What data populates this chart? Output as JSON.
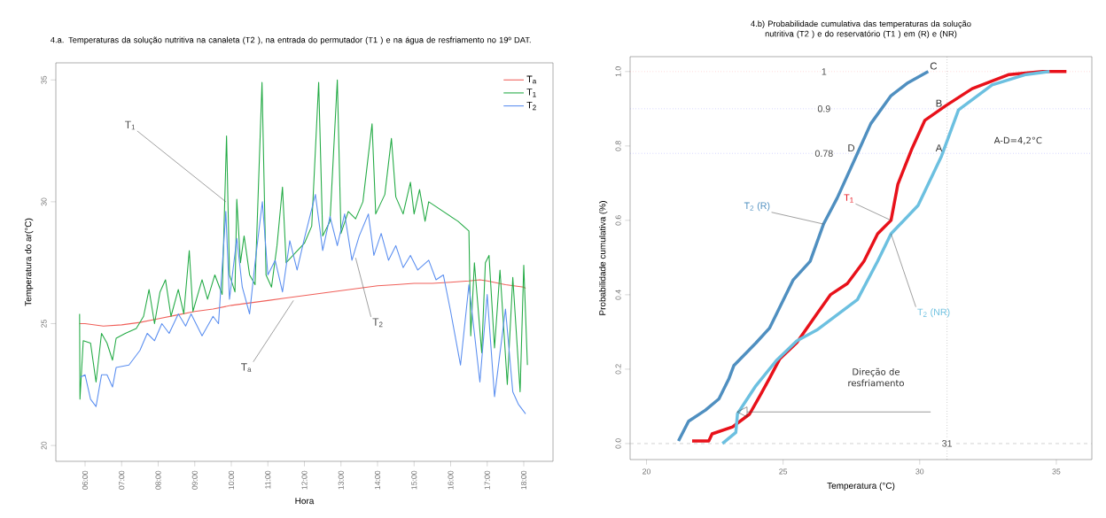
{
  "chart_data": [
    {
      "type": "line",
      "title": "4.a. Temperaturas da solução nutritiva na canaleta (T2 ), na entrada do permutador (T1 ) e na água de resfriamento no 19º DAT.",
      "xlabel": "Hora",
      "ylabel": "Temperatura do ar(°C)",
      "xlim": [
        5.2,
        18.8
      ],
      "ylim": [
        19.35,
        35.7
      ],
      "xticks": [
        {
          "value": 6,
          "label": "06:00"
        },
        {
          "value": 7,
          "label": "07:00"
        },
        {
          "value": 8,
          "label": "08:00"
        },
        {
          "value": 9,
          "label": "09:00"
        },
        {
          "value": 10,
          "label": "10:00"
        },
        {
          "value": 11,
          "label": "11:00"
        },
        {
          "value": 12,
          "label": "12:00"
        },
        {
          "value": 13,
          "label": "13:00"
        },
        {
          "value": 14,
          "label": "14:00"
        },
        {
          "value": 15,
          "label": "15:00"
        },
        {
          "value": 16,
          "label": "16:00"
        },
        {
          "value": 17,
          "label": "17:00"
        },
        {
          "value": 18,
          "label": "18:00"
        }
      ],
      "yticks": [
        20,
        25,
        30,
        35
      ],
      "legend": "top right",
      "annotations": [
        {
          "text": "T$_{1}$",
          "x": 9.85,
          "y": 30.0
        },
        {
          "text": "T$_{2}$",
          "x": 13.4,
          "y": 27.7
        },
        {
          "text": "T$_{a}$",
          "x": 11.7,
          "y": 25.95
        }
      ],
      "series": [
        {
          "name": "T$_{a}$",
          "color": "#f0605a",
          "x": [
            5.85,
            6.0,
            6.5,
            7.0,
            7.5,
            8.0,
            8.5,
            9.0,
            9.5,
            10.0,
            10.5,
            11.0,
            11.5,
            12.0,
            12.5,
            13.0,
            13.5,
            14.0,
            14.5,
            15.0,
            15.5,
            16.0,
            16.5,
            16.8,
            17.0,
            17.5,
            18.0,
            18.05
          ],
          "values": [
            25.0,
            25.0,
            24.9,
            24.95,
            25.05,
            25.2,
            25.35,
            25.5,
            25.6,
            25.75,
            25.85,
            25.95,
            26.05,
            26.15,
            26.25,
            26.35,
            26.45,
            26.55,
            26.6,
            26.65,
            26.65,
            26.7,
            26.75,
            26.8,
            26.75,
            26.6,
            26.5,
            26.45
          ]
        },
        {
          "name": "T$_{1}$",
          "color": "#22aa44",
          "x": [
            5.85,
            5.86,
            5.95,
            6.15,
            6.3,
            6.45,
            6.6,
            6.75,
            6.85,
            7.1,
            7.4,
            7.6,
            7.75,
            7.9,
            8.05,
            8.2,
            8.35,
            8.55,
            8.7,
            8.85,
            8.95,
            9.2,
            9.35,
            9.55,
            9.75,
            9.87,
            9.95,
            10.1,
            10.15,
            10.25,
            10.35,
            10.5,
            10.65,
            10.84,
            10.95,
            11.1,
            11.25,
            11.4,
            11.5,
            11.75,
            12.0,
            12.2,
            12.39,
            12.5,
            12.7,
            12.9,
            13.0,
            13.2,
            13.4,
            13.6,
            13.85,
            13.95,
            14.2,
            14.38,
            14.5,
            14.7,
            14.9,
            15.0,
            15.15,
            15.3,
            15.4,
            15.8,
            16.2,
            16.5,
            16.55,
            16.65,
            16.85,
            16.95,
            17.05,
            17.2,
            17.35,
            17.55,
            17.7,
            17.9,
            18.0,
            18.1
          ],
          "values": [
            25.4,
            21.9,
            24.3,
            24.2,
            22.6,
            24.6,
            24.2,
            23.5,
            24.4,
            24.6,
            24.8,
            25.3,
            26.4,
            25.0,
            26.3,
            26.8,
            25.3,
            26.4,
            25.4,
            28.0,
            25.5,
            26.8,
            26.0,
            27.0,
            26.2,
            32.7,
            27.0,
            26.3,
            30.1,
            27.5,
            28.6,
            27.0,
            26.6,
            34.9,
            27.0,
            26.5,
            28.2,
            30.6,
            27.5,
            27.9,
            28.3,
            29.0,
            34.9,
            28.6,
            29.2,
            35.0,
            28.7,
            29.6,
            29.3,
            30.0,
            33.2,
            29.5,
            30.3,
            32.6,
            30.2,
            29.5,
            30.8,
            29.5,
            30.5,
            29.2,
            30.0,
            29.6,
            29.2,
            28.8,
            24.5,
            27.5,
            23.8,
            27.5,
            27.8,
            24.0,
            27.2,
            22.5,
            26.9,
            22.2,
            27.4,
            23.3
          ]
        },
        {
          "name": "T$_{2}$",
          "color": "#5a8ef0",
          "x": [
            5.87,
            6.0,
            6.15,
            6.3,
            6.45,
            6.6,
            6.75,
            6.85,
            7.2,
            7.5,
            7.7,
            7.9,
            8.1,
            8.3,
            8.55,
            8.75,
            8.9,
            9.2,
            9.5,
            9.65,
            9.85,
            9.95,
            10.15,
            10.3,
            10.5,
            10.65,
            10.85,
            11.0,
            11.2,
            11.4,
            11.6,
            11.8,
            12.0,
            12.3,
            12.5,
            12.7,
            12.9,
            13.1,
            13.3,
            13.5,
            13.75,
            13.9,
            14.1,
            14.3,
            14.5,
            14.7,
            14.9,
            15.1,
            15.4,
            15.6,
            15.8,
            16.0,
            16.27,
            16.5,
            16.8,
            17.0,
            17.2,
            17.5,
            17.7,
            17.85,
            18.0,
            18.05
          ],
          "values": [
            22.8,
            22.9,
            21.9,
            21.6,
            22.9,
            22.9,
            22.4,
            23.2,
            23.3,
            23.9,
            24.6,
            24.3,
            25.0,
            24.6,
            25.4,
            24.9,
            25.4,
            24.5,
            25.3,
            25.0,
            29.6,
            26.0,
            28.5,
            26.5,
            25.4,
            27.5,
            30.0,
            27.0,
            27.6,
            26.3,
            28.4,
            27.2,
            28.5,
            30.3,
            28.0,
            29.4,
            28.2,
            29.5,
            27.6,
            28.6,
            29.5,
            27.8,
            28.7,
            27.6,
            28.2,
            27.3,
            27.8,
            27.2,
            27.6,
            26.8,
            27.0,
            25.5,
            23.3,
            26.6,
            22.6,
            26.2,
            22.0,
            25.6,
            22.2,
            21.7,
            21.4,
            21.3
          ]
        }
      ]
    },
    {
      "type": "line",
      "title": "4.b) Probabilidade cumulativa das temperaturas da solução nutritiva (T2 ) e do reservatório (T1 ) em (R) e (NR)",
      "xlabel": "Temperatura (°C)",
      "ylabel": "Probabilidade cumulativa (%)",
      "xlim": [
        19.4,
        36.3
      ],
      "ylim": [
        -0.043,
        1.04
      ],
      "xticks": [
        20,
        25,
        30,
        35
      ],
      "yticks": [
        {
          "value": 0,
          "label": "0.0"
        },
        {
          "value": 0.2,
          "label": "0.2"
        },
        {
          "value": 0.4,
          "label": "0.4"
        },
        {
          "value": 0.6,
          "label": "0.6"
        },
        {
          "value": 0.8,
          "label": "0.8"
        },
        {
          "value": 1.0,
          "label": "1.0"
        }
      ],
      "ref_lines": [
        {
          "axis": "y",
          "value": 1,
          "label": "1",
          "color": "#ff8080",
          "line_style": "dotted"
        },
        {
          "axis": "y",
          "value": 0.9,
          "label": "0.9",
          "color": "#7070ff",
          "line_style": "dotted"
        },
        {
          "axis": "y",
          "value": 0.78,
          "label": "0.78",
          "color": "#7070ff",
          "line_style": "dotted"
        },
        {
          "axis": "y",
          "value": 0,
          "color": "#aaaaaa",
          "line_style": "dashed"
        },
        {
          "axis": "x",
          "value": 31,
          "label": "31",
          "color": "#555555",
          "line_style": "dotted"
        }
      ],
      "annotations": [
        {
          "text": "C",
          "x": 30.3,
          "y": 1.0
        },
        {
          "text": "B",
          "x": 30.9,
          "y": 0.9
        },
        {
          "text": "A",
          "x": 30.9,
          "y": 0.78
        },
        {
          "text": "D",
          "x": 27.7,
          "y": 0.78
        },
        "A-D=4,2°C",
        "Direção de resfriamento"
      ],
      "series": [
        {
          "name": "T$_{2}$ (R)",
          "color": "#4f8fc0",
          "x": [
            21.17,
            21.54,
            22.16,
            22.65,
            23.02,
            23.2,
            24.0,
            24.5,
            25.37,
            25.99,
            26.48,
            26.98,
            27.72,
            28.21,
            28.95,
            29.57,
            30.31
          ],
          "values": [
            0.007,
            0.06,
            0.09,
            0.12,
            0.175,
            0.21,
            0.27,
            0.31,
            0.44,
            0.49,
            0.59,
            0.66,
            0.78,
            0.86,
            0.935,
            0.97,
            1.0
          ]
        },
        {
          "name": "T$_{1}$",
          "color": "#e8111a",
          "x": [
            21.67,
            22.28,
            22.4,
            23.15,
            23.77,
            24.14,
            24.5,
            24.88,
            25.5,
            26.23,
            26.73,
            27.35,
            27.96,
            28.46,
            28.95,
            29.2,
            29.7,
            30.19,
            30.93,
            31.92,
            33.27,
            34.5,
            35.37
          ],
          "values": [
            0.007,
            0.007,
            0.026,
            0.045,
            0.079,
            0.127,
            0.175,
            0.228,
            0.271,
            0.348,
            0.4,
            0.43,
            0.49,
            0.564,
            0.6,
            0.697,
            0.79,
            0.869,
            0.907,
            0.954,
            0.992,
            1.0,
            1.0
          ]
        },
        {
          "name": "T$_{2}$ (NR)",
          "color": "#6cc0e0",
          "x": [
            22.78,
            23.27,
            23.33,
            24.0,
            24.75,
            25.5,
            26.23,
            27.72,
            28.46,
            28.95,
            29.94,
            30.8,
            31.42,
            32.65,
            33.89,
            34.75
          ],
          "values": [
            0.0,
            0.03,
            0.08,
            0.155,
            0.223,
            0.276,
            0.305,
            0.387,
            0.49,
            0.564,
            0.64,
            0.773,
            0.897,
            0.964,
            0.992,
            1.0
          ]
        }
      ]
    }
  ]
}
